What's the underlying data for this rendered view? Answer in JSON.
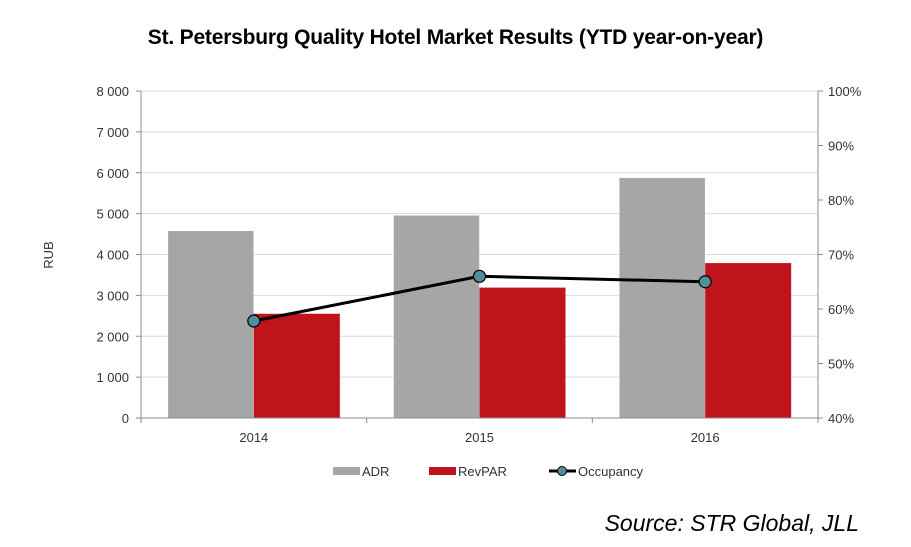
{
  "title": "St. Petersburg Quality Hotel Market Results (YTD year-on-year)",
  "source": "Source: STR Global, JLL",
  "chart_data": {
    "type": "bar",
    "categories": [
      "2014",
      "2015",
      "2016"
    ],
    "ylabel": "RUB",
    "ylim": [
      0,
      8000
    ],
    "y_ticks": [
      "0",
      "1 000",
      "2 000",
      "3 000",
      "4 000",
      "5 000",
      "6 000",
      "7 000",
      "8 000"
    ],
    "y2lim": [
      40,
      100
    ],
    "y2_ticks": [
      "40%",
      "50%",
      "60%",
      "70%",
      "80%",
      "90%",
      "100%"
    ],
    "grid": true,
    "legend_position": "bottom",
    "series": [
      {
        "name": "ADR",
        "type": "bar",
        "axis": "left",
        "color": "#a6a6a6",
        "values": [
          4580,
          4960,
          5880
        ]
      },
      {
        "name": "RevPAR",
        "type": "bar",
        "axis": "left",
        "color": "#c0141c",
        "values": [
          2550,
          3190,
          3790
        ]
      },
      {
        "name": "Occupancy",
        "type": "line",
        "axis": "right",
        "color": "#000000",
        "marker_color": "#4f8f9a",
        "values": [
          57.8,
          66.0,
          65.0
        ]
      }
    ]
  }
}
